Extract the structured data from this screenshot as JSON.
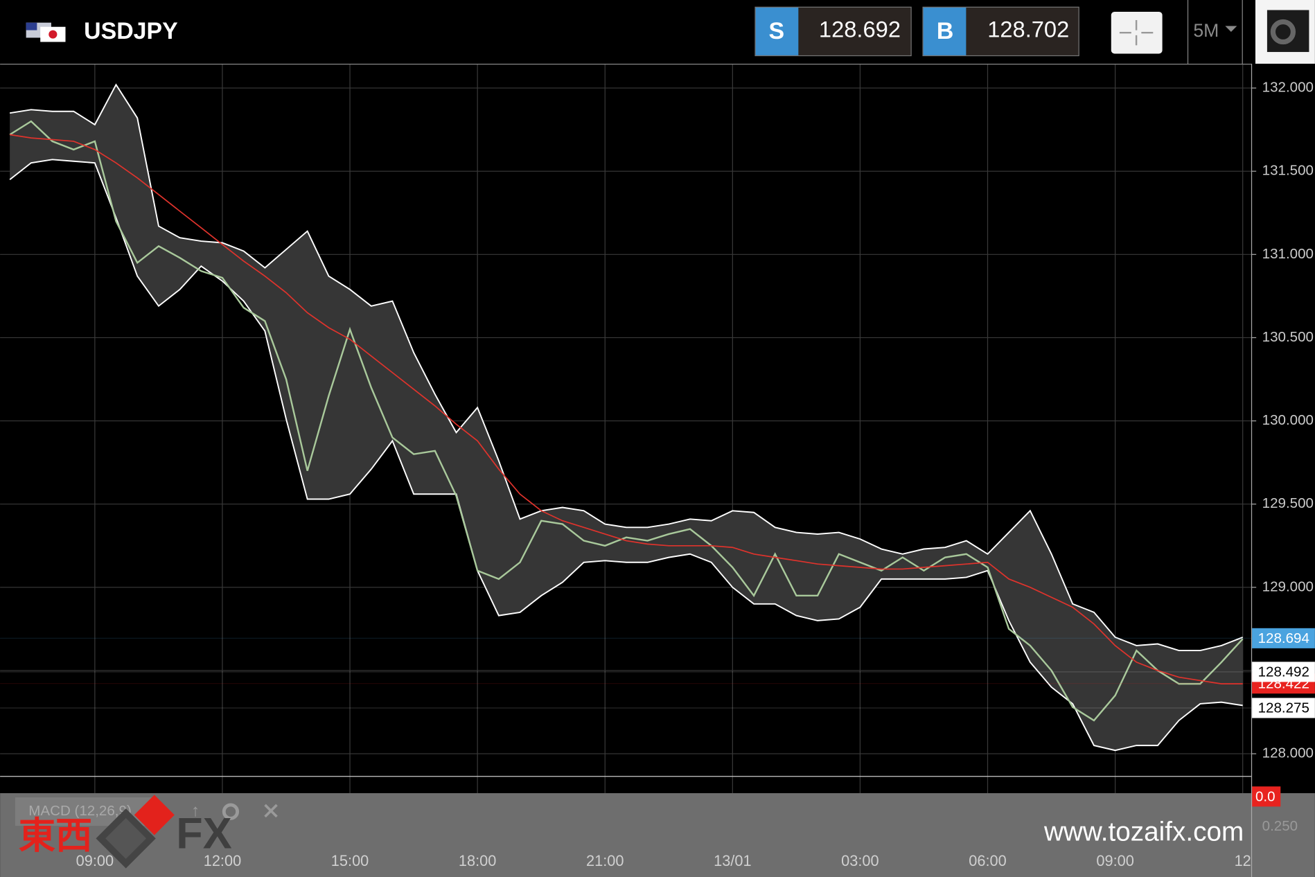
{
  "header": {
    "symbol": "USDJPY",
    "sell_label": "S",
    "sell_price": "128.692",
    "buy_label": "B",
    "buy_price": "128.702",
    "timeframe": "5M"
  },
  "chart_data": {
    "type": "line",
    "categories": [
      null,
      null,
      null,
      null,
      "09:00",
      null,
      null,
      null,
      null,
      null,
      "12:00",
      null,
      null,
      null,
      null,
      null,
      "15:00",
      null,
      null,
      null,
      null,
      null,
      "18:00",
      null,
      null,
      null,
      null,
      null,
      "21:00",
      null,
      null,
      null,
      null,
      null,
      "13/01",
      null,
      null,
      null,
      null,
      null,
      "03:00",
      null,
      null,
      null,
      null,
      null,
      "06:00",
      null,
      null,
      null,
      null,
      null,
      "09:00",
      null,
      null,
      null,
      null,
      null,
      "12"
    ],
    "series": [
      {
        "color": "#a9c99b",
        "values": [
          131.72,
          131.8,
          131.68,
          131.63,
          131.68,
          131.2,
          130.95,
          131.05,
          130.98,
          130.9,
          130.86,
          130.68,
          130.6,
          130.25,
          129.7,
          130.15,
          130.55,
          130.2,
          129.9,
          129.8,
          129.82,
          129.55,
          129.1,
          129.05,
          129.15,
          129.4,
          129.38,
          129.28,
          129.25,
          129.3,
          129.28,
          129.32,
          129.35,
          129.25,
          129.12,
          128.95,
          129.2,
          128.95,
          128.95,
          129.2,
          129.15,
          129.1,
          129.18,
          129.1,
          129.18,
          129.2,
          129.12,
          128.75,
          128.65,
          128.5,
          128.28,
          128.2,
          128.35,
          128.62,
          128.5,
          128.42,
          128.42,
          128.55,
          128.69
        ]
      },
      {
        "color": "#e0332c",
        "values": [
          131.72,
          131.7,
          131.69,
          131.68,
          131.63,
          131.55,
          131.46,
          131.36,
          131.26,
          131.16,
          131.06,
          130.96,
          130.87,
          130.77,
          130.65,
          130.56,
          130.49,
          130.39,
          130.29,
          130.19,
          130.09,
          129.98,
          129.88,
          129.71,
          129.56,
          129.46,
          129.4,
          129.36,
          129.32,
          129.28,
          129.26,
          129.25,
          129.25,
          129.25,
          129.24,
          129.2,
          129.18,
          129.16,
          129.14,
          129.13,
          129.12,
          129.11,
          129.11,
          129.12,
          129.13,
          129.14,
          129.15,
          129.05,
          129.0,
          128.94,
          128.88,
          128.78,
          128.65,
          128.55,
          128.5,
          128.46,
          128.44,
          128.42,
          128.42
        ]
      }
    ],
    "band": {
      "color": "#ffffff",
      "fill": "#363636",
      "upper": [
        131.85,
        131.87,
        131.86,
        131.86,
        131.78,
        132.02,
        131.82,
        131.17,
        131.1,
        131.08,
        131.07,
        131.02,
        130.92,
        131.03,
        131.14,
        130.87,
        130.79,
        130.69,
        130.72,
        130.41,
        130.16,
        129.93,
        130.08,
        129.76,
        129.41,
        129.46,
        129.48,
        129.46,
        129.38,
        129.36,
        129.36,
        129.38,
        129.41,
        129.4,
        129.46,
        129.45,
        129.36,
        129.33,
        129.32,
        129.33,
        129.29,
        129.23,
        129.2,
        129.23,
        129.24,
        129.28,
        129.2,
        129.33,
        129.46,
        129.2,
        128.9,
        128.85,
        128.7,
        128.65,
        128.66,
        128.62,
        128.62,
        128.65,
        128.7
      ],
      "lower": [
        131.45,
        131.55,
        131.57,
        131.56,
        131.55,
        131.22,
        130.87,
        130.69,
        130.79,
        130.93,
        130.84,
        130.72,
        130.54,
        130.01,
        129.53,
        129.53,
        129.56,
        129.71,
        129.88,
        129.56,
        129.56,
        129.56,
        129.1,
        128.83,
        128.85,
        128.95,
        129.03,
        129.15,
        129.16,
        129.15,
        129.15,
        129.18,
        129.2,
        129.15,
        129.0,
        128.9,
        128.9,
        128.83,
        128.8,
        128.81,
        128.88,
        129.05,
        129.05,
        129.05,
        129.05,
        129.06,
        129.1,
        128.8,
        128.55,
        128.4,
        128.3,
        128.05,
        128.02,
        128.05,
        128.05,
        128.2,
        128.3,
        128.31,
        128.29
      ]
    },
    "ylim": [
      127.869,
      132.146
    ],
    "yticks": [
      {
        "value": 128,
        "label": "128.000"
      },
      {
        "value": 128.5,
        "label": "128.500"
      },
      {
        "value": 129,
        "label": "129.000"
      },
      {
        "value": 129.5,
        "label": "129.500"
      },
      {
        "value": 130,
        "label": "130.000"
      },
      {
        "value": 130.5,
        "label": "130.500"
      },
      {
        "value": 131,
        "label": "131.000"
      },
      {
        "value": 131.5,
        "label": "131.500"
      },
      {
        "value": 132,
        "label": "132.000"
      }
    ],
    "grid": true,
    "price_markers": [
      {
        "value": 128.422,
        "color": "#e8231f",
        "text_color": "#ffffff"
      },
      {
        "value": 128.492,
        "color": "#ffffff",
        "text_color": "#000000"
      },
      {
        "value": 128.275,
        "color": "#ffffff",
        "text_color": "#000000"
      },
      {
        "value": 128.694,
        "color": "#4aa3df",
        "text_color": "#ffffff"
      }
    ]
  },
  "macd": {
    "title": "MACD (12,26,9)",
    "zero_label": "0.0",
    "low_label": "0.250"
  },
  "watermark": {
    "brand": "東西",
    "fx": "FX",
    "url": "www.tozaifx.com"
  }
}
